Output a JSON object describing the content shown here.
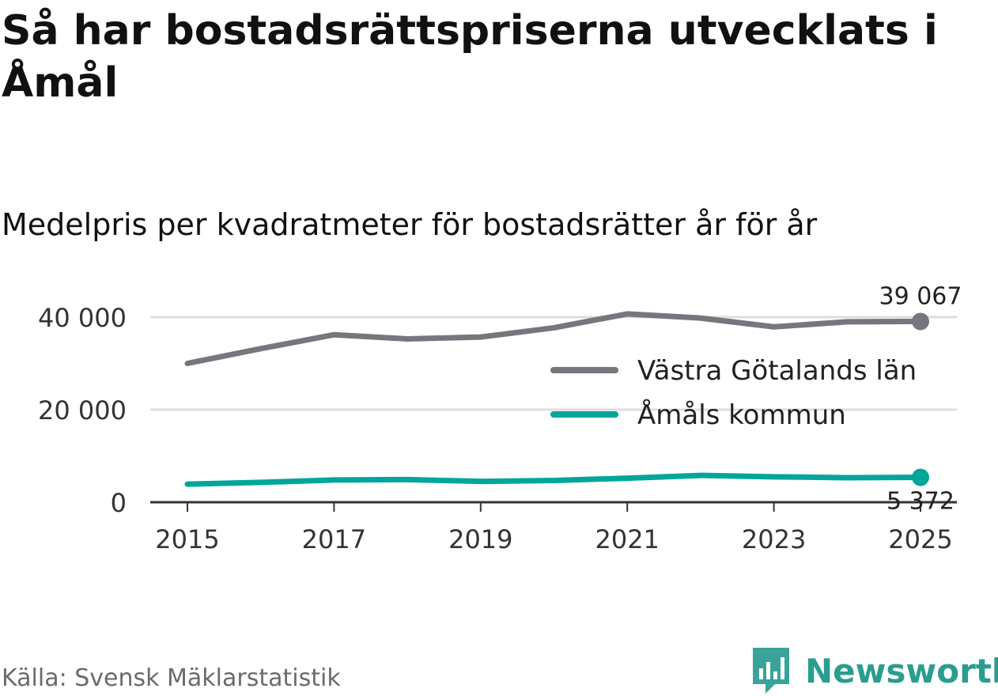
{
  "title": "Så har bostadsrättspriserna utvecklats i Åmål",
  "subtitle": "Medelpris per kvadratmeter för bostadsrätter år för år",
  "source": "Källa: Svensk Mäklarstatistik",
  "brand": "Newsworthy",
  "colors": {
    "series_gray": "#76767d",
    "series_teal": "#00a69a",
    "grid": "#dedede",
    "axis": "#333333",
    "text": "#333333"
  },
  "chart_data": {
    "type": "line",
    "x": [
      2015,
      2016,
      2017,
      2018,
      2019,
      2020,
      2021,
      2022,
      2023,
      2024,
      2025
    ],
    "xticks": [
      "2015",
      "2017",
      "2019",
      "2021",
      "2023",
      "2025"
    ],
    "yticks": [
      "0",
      "20 000",
      "40 000"
    ],
    "ylim": [
      0,
      40000
    ],
    "series": [
      {
        "name": "Västra Götalands län",
        "values": [
          30000,
          33200,
          36200,
          35300,
          35700,
          37700,
          40700,
          39800,
          37900,
          39000,
          39067
        ],
        "end_label": "39 067"
      },
      {
        "name": "Åmåls kommun",
        "values": [
          3900,
          4300,
          4800,
          4900,
          4500,
          4700,
          5200,
          5800,
          5500,
          5300,
          5372
        ],
        "end_label": "5 372"
      }
    ],
    "legend": "right"
  }
}
